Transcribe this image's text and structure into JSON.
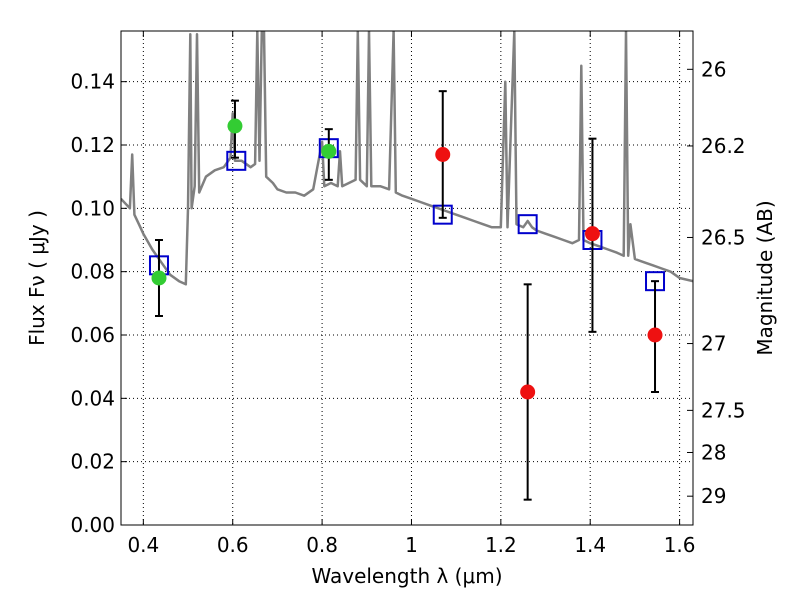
{
  "chart_data": {
    "type": "scatter",
    "title": "",
    "xlabel": "Wavelength  λ (μm)",
    "ylabel": "Flux  Fν  ( μJy )",
    "y2label": "Magnitude (AB)",
    "xlim": [
      0.35,
      1.63
    ],
    "ylim": [
      0.0,
      0.156
    ],
    "grid": true,
    "x_ticks": [
      0.4,
      0.6,
      0.8,
      1.0,
      1.2,
      1.4,
      1.6
    ],
    "x_tick_labels": [
      "0.4",
      "0.6",
      "0.8",
      "1",
      "1.2",
      "1.4",
      "1.6"
    ],
    "y_ticks": [
      0.0,
      0.02,
      0.04,
      0.06,
      0.08,
      0.1,
      0.12,
      0.14
    ],
    "y_tick_labels": [
      "0.00",
      "0.02",
      "0.04",
      "0.06",
      "0.08",
      "0.10",
      "0.12",
      "0.14"
    ],
    "y2_ticks": [
      {
        "label": "26",
        "flux": 0.1439
      },
      {
        "label": "26.2",
        "flux": 0.1197
      },
      {
        "label": "26.5",
        "flux": 0.0908
      },
      {
        "label": "27",
        "flux": 0.0573
      },
      {
        "label": "27.5",
        "flux": 0.0362
      },
      {
        "label": "28",
        "flux": 0.0229
      },
      {
        "label": "29",
        "flux": 0.0091
      }
    ],
    "series": [
      {
        "kind": "spectrum",
        "color": "#808080",
        "points": [
          [
            0.35,
            0.103
          ],
          [
            0.37,
            0.1
          ],
          [
            0.375,
            0.117
          ],
          [
            0.38,
            0.098
          ],
          [
            0.39,
            0.095
          ],
          [
            0.4,
            0.092
          ],
          [
            0.42,
            0.087
          ],
          [
            0.44,
            0.083
          ],
          [
            0.46,
            0.079
          ],
          [
            0.48,
            0.077
          ],
          [
            0.495,
            0.076
          ],
          [
            0.5,
            0.1
          ],
          [
            0.505,
            0.155
          ],
          [
            0.508,
            0.1
          ],
          [
            0.515,
            0.107
          ],
          [
            0.52,
            0.155
          ],
          [
            0.525,
            0.105
          ],
          [
            0.54,
            0.11
          ],
          [
            0.56,
            0.112
          ],
          [
            0.58,
            0.113
          ],
          [
            0.595,
            0.116
          ],
          [
            0.6,
            0.13
          ],
          [
            0.605,
            0.115
          ],
          [
            0.62,
            0.115
          ],
          [
            0.64,
            0.113
          ],
          [
            0.65,
            0.114
          ],
          [
            0.655,
            0.156
          ],
          [
            0.66,
            0.115
          ],
          [
            0.665,
            0.156
          ],
          [
            0.67,
            0.156
          ],
          [
            0.675,
            0.11
          ],
          [
            0.69,
            0.108
          ],
          [
            0.7,
            0.106
          ],
          [
            0.72,
            0.105
          ],
          [
            0.74,
            0.105
          ],
          [
            0.76,
            0.104
          ],
          [
            0.78,
            0.106
          ],
          [
            0.8,
            0.121
          ],
          [
            0.805,
            0.107
          ],
          [
            0.82,
            0.108
          ],
          [
            0.835,
            0.107
          ],
          [
            0.84,
            0.118
          ],
          [
            0.845,
            0.107
          ],
          [
            0.86,
            0.108
          ],
          [
            0.875,
            0.109
          ],
          [
            0.88,
            0.156
          ],
          [
            0.885,
            0.109
          ],
          [
            0.9,
            0.107
          ],
          [
            0.905,
            0.156
          ],
          [
            0.91,
            0.107
          ],
          [
            0.93,
            0.107
          ],
          [
            0.95,
            0.106
          ],
          [
            0.96,
            0.156
          ],
          [
            0.965,
            0.105
          ],
          [
            0.98,
            0.104
          ],
          [
            1.0,
            0.103
          ],
          [
            1.02,
            0.102
          ],
          [
            1.04,
            0.101
          ],
          [
            1.06,
            0.1
          ],
          [
            1.08,
            0.099
          ],
          [
            1.1,
            0.098
          ],
          [
            1.12,
            0.097
          ],
          [
            1.14,
            0.096
          ],
          [
            1.16,
            0.095
          ],
          [
            1.18,
            0.094
          ],
          [
            1.2,
            0.094
          ],
          [
            1.21,
            0.14
          ],
          [
            1.215,
            0.094
          ],
          [
            1.23,
            0.156
          ],
          [
            1.235,
            0.095
          ],
          [
            1.25,
            0.094
          ],
          [
            1.26,
            0.096
          ],
          [
            1.27,
            0.094
          ],
          [
            1.28,
            0.093
          ],
          [
            1.3,
            0.092
          ],
          [
            1.32,
            0.091
          ],
          [
            1.34,
            0.09
          ],
          [
            1.36,
            0.089
          ],
          [
            1.375,
            0.09
          ],
          [
            1.38,
            0.145
          ],
          [
            1.385,
            0.09
          ],
          [
            1.4,
            0.089
          ],
          [
            1.42,
            0.088
          ],
          [
            1.44,
            0.087
          ],
          [
            1.46,
            0.086
          ],
          [
            1.475,
            0.085
          ],
          [
            1.48,
            0.156
          ],
          [
            1.485,
            0.085
          ],
          [
            1.49,
            0.095
          ],
          [
            1.5,
            0.084
          ],
          [
            1.52,
            0.083
          ],
          [
            1.54,
            0.082
          ],
          [
            1.56,
            0.081
          ],
          [
            1.58,
            0.08
          ],
          [
            1.6,
            0.078
          ],
          [
            1.63,
            0.077
          ]
        ]
      },
      {
        "kind": "model-squares",
        "color": "#0000cc",
        "points": [
          [
            0.435,
            0.082
          ],
          [
            0.608,
            0.115
          ],
          [
            0.815,
            0.119
          ],
          [
            1.07,
            0.098
          ],
          [
            1.26,
            0.095
          ],
          [
            1.405,
            0.09
          ],
          [
            1.545,
            0.077
          ]
        ]
      },
      {
        "kind": "detections",
        "color": "#33cc33",
        "points": [
          {
            "x": 0.435,
            "y": 0.078,
            "err": [
              0.066,
              0.09
            ]
          },
          {
            "x": 0.605,
            "y": 0.126,
            "err": [
              0.116,
              0.134
            ]
          },
          {
            "x": 0.815,
            "y": 0.118,
            "err": [
              0.109,
              0.125
            ]
          }
        ]
      },
      {
        "kind": "detections",
        "color": "#ee1111",
        "points": [
          {
            "x": 1.07,
            "y": 0.117,
            "err": [
              0.097,
              0.137
            ]
          },
          {
            "x": 1.26,
            "y": 0.042,
            "err": [
              0.008,
              0.076
            ]
          },
          {
            "x": 1.405,
            "y": 0.092,
            "err": [
              0.061,
              0.122
            ]
          },
          {
            "x": 1.545,
            "y": 0.06,
            "err": [
              0.042,
              0.077
            ]
          }
        ]
      }
    ]
  }
}
